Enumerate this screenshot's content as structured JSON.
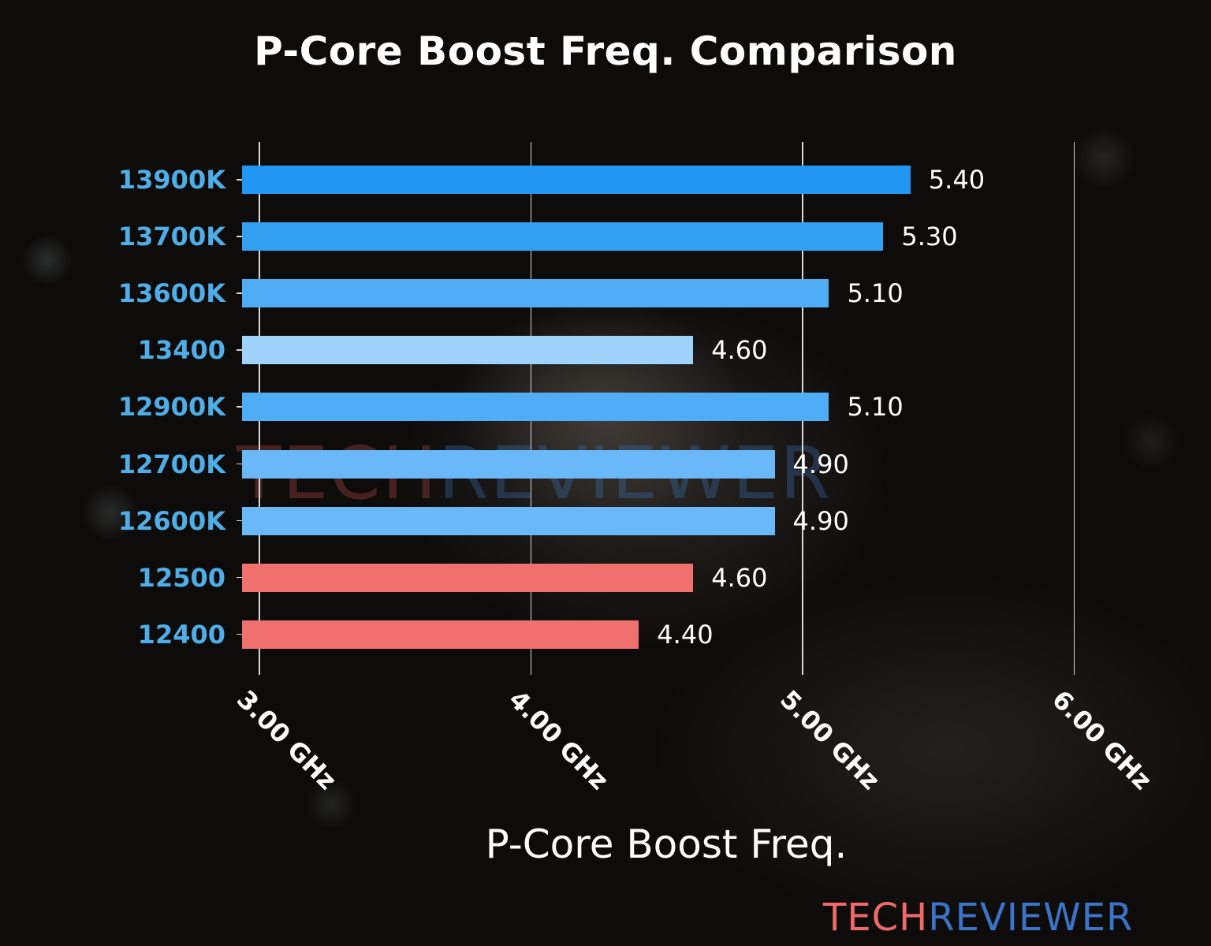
{
  "title": "P-Core Boost Freq. Comparison",
  "xlabel": "P-Core Boost Freq.",
  "brand": {
    "part1": "TECH",
    "part2": "REVIEWER"
  },
  "x_ticks": [
    "3.00 GHz",
    "4.00 GHz",
    "5.00 GHz",
    "6.00 GHz"
  ],
  "colors": {
    "blue_dark": "#2196f3",
    "blue_mid": "#33a0f0",
    "blue_light": "#4fadf5",
    "blue_lighter": "#6ab8f7",
    "blue_pale": "#a0d3fa",
    "red": "#f0706d",
    "label": "#4faee8"
  },
  "chart_data": {
    "type": "bar",
    "orientation": "horizontal",
    "title": "P-Core Boost Freq. Comparison",
    "xlabel": "P-Core Boost Freq.",
    "ylabel": "",
    "xlim": [
      2.94,
      6.0
    ],
    "x_ticks": [
      3.0,
      4.0,
      5.0,
      6.0
    ],
    "x_tick_labels": [
      "3.00 GHz",
      "4.00 GHz",
      "5.00 GHz",
      "6.00 GHz"
    ],
    "grid": "vertical",
    "legend": "none",
    "categories": [
      "13900K",
      "13700K",
      "13600K",
      "13400",
      "12900K",
      "12700K",
      "12600K",
      "12500",
      "12400"
    ],
    "values": [
      5.4,
      5.3,
      5.1,
      4.6,
      5.1,
      4.9,
      4.9,
      4.6,
      4.4
    ],
    "value_labels": [
      "5.40",
      "5.30",
      "5.10",
      "4.60",
      "5.10",
      "4.90",
      "4.90",
      "4.60",
      "4.40"
    ],
    "bar_colors": [
      "#2196f3",
      "#33a0f0",
      "#4fadf5",
      "#a0d3fa",
      "#4fadf5",
      "#6ab8f7",
      "#6ab8f7",
      "#f0706d",
      "#f0706d"
    ],
    "unit": "GHz"
  }
}
